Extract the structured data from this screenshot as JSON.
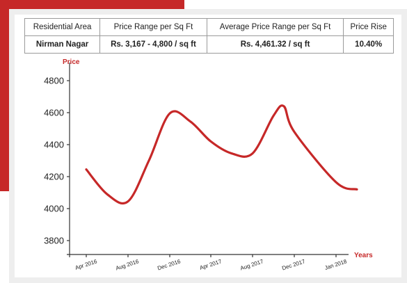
{
  "table": {
    "headers": [
      "Residential Area",
      "Price Range per Sq Ft",
      "Average Price Range per Sq Ft",
      "Price Rise"
    ],
    "row": [
      "Nirman Nagar",
      "Rs. 3,167 - 4,800 / sq ft",
      "Rs. 4,461.32 / sq ft",
      "10.40%"
    ]
  },
  "colors": {
    "accent": "#c62828",
    "frame": "#eeeeee",
    "line": "#c62828"
  },
  "chart_data": {
    "type": "line",
    "ylabel": "Price",
    "xlabel": "Years",
    "ylim": [
      3700,
      4900
    ],
    "yticks": [
      3800,
      4000,
      4200,
      4400,
      4600,
      4800
    ],
    "categories": [
      "Apr 2016",
      "Aug 2016",
      "Dec 2016",
      "Apr 2017",
      "Aug 2017",
      "Dec 2017",
      "Jan 2018"
    ],
    "grid": false,
    "series": [
      {
        "x": [
          "Apr 2016",
          "Jun 2016",
          "Aug 2016",
          "Oct 2016",
          "Dec 2016",
          "Feb 2017",
          "Apr 2017",
          "Jun 2017",
          "Aug 2017",
          "Oct 2017",
          "Nov 2017",
          "Dec 2017",
          "Jan 2018",
          "Mar 2018"
        ],
        "values": [
          4245,
          4090,
          4045,
          4300,
          4595,
          4545,
          4420,
          4345,
          4345,
          4580,
          4640,
          4480,
          4165,
          4120
        ]
      }
    ]
  }
}
